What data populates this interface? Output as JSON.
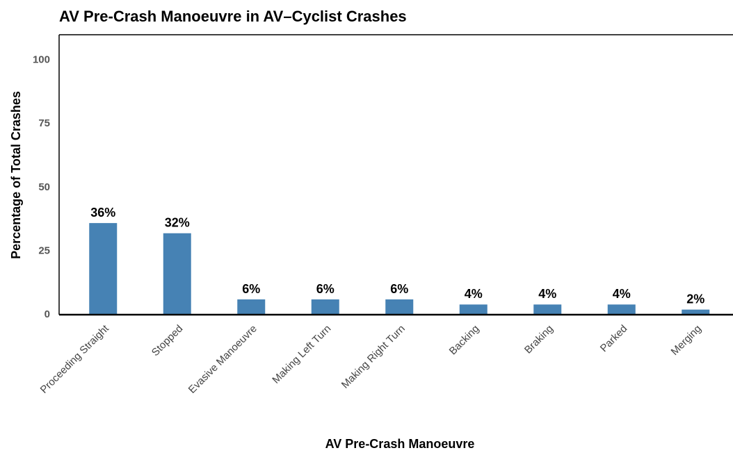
{
  "chart_data": {
    "type": "bar",
    "title": "AV Pre-Crash Manoeuvre in AV–Cyclist Crashes",
    "x_label": "AV Pre-Crash Manoeuvre",
    "y_label": "Percentage of Total Crashes",
    "categories": [
      "Proceeding Straight",
      "Stopped",
      "Evasive Manoeuvre",
      "Making Left Turn",
      "Making Right Turn",
      "Backing",
      "Braking",
      "Parked",
      "Merging"
    ],
    "values": [
      36,
      32,
      6,
      6,
      6,
      4,
      4,
      4,
      2
    ],
    "value_labels": [
      "36%",
      "32%",
      "6%",
      "6%",
      "6%",
      "4%",
      "4%",
      "4%",
      "2%"
    ],
    "color": "#4682b4",
    "ylim": [
      0,
      110
    ],
    "yticks": [
      0,
      25,
      50,
      75,
      100
    ],
    "grid": false
  }
}
